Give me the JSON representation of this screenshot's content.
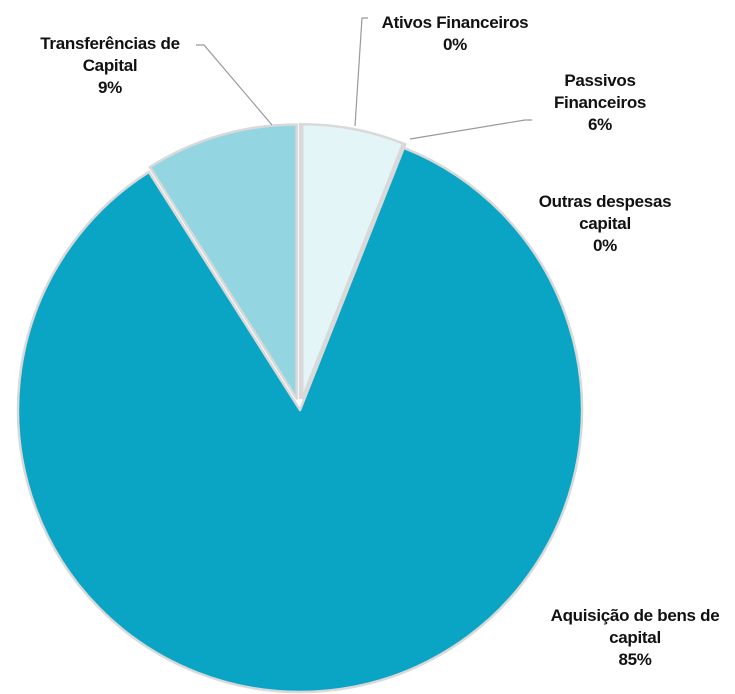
{
  "chart_data": {
    "type": "pie",
    "categories": [
      "Ativos Financeiros",
      "Passivos Financeiros",
      "Outras despesas capital",
      "Aquisição de bens de capital",
      "Transferências de Capital"
    ],
    "values": [
      0,
      6,
      0,
      85,
      9
    ],
    "value_labels": [
      "0%",
      "6%",
      "0%",
      "85%",
      "9%"
    ],
    "colors": [
      "#7fcfdf",
      "#e4f5f8",
      "#5cc0d4",
      "#0aa5c5",
      "#93d6e1"
    ]
  }
}
